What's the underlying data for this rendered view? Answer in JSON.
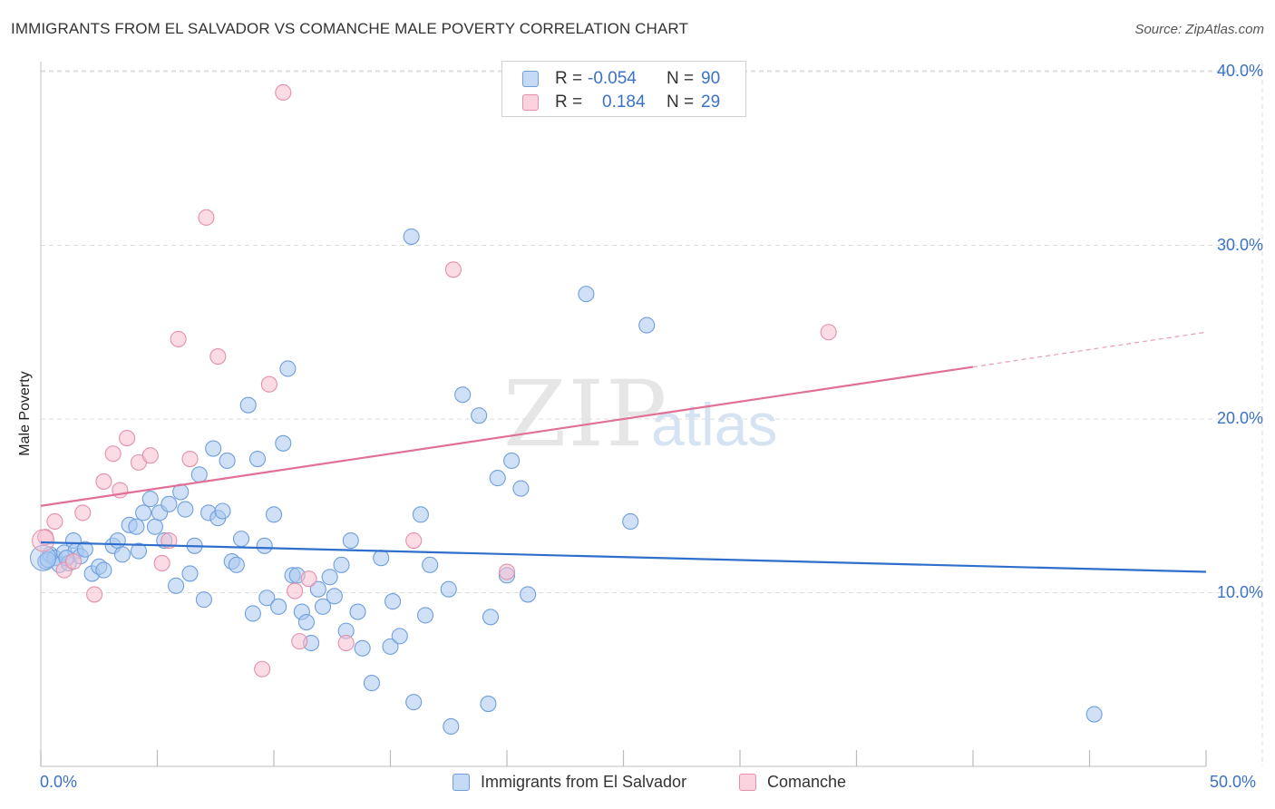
{
  "title": "IMMIGRANTS FROM EL SALVADOR VS COMANCHE MALE POVERTY CORRELATION CHART",
  "source": "Source: ZipAtlas.com",
  "watermark": {
    "zip": "ZIP",
    "atlas": "atlas"
  },
  "legend": {
    "rows": [
      {
        "r_label": "R =",
        "r_value": "-0.054",
        "n_label": "N =",
        "n_value": "90",
        "color": "#a9c8f0"
      },
      {
        "r_label": "R =",
        "r_value": "0.184",
        "n_label": "N =",
        "n_value": "29",
        "color": "#f7bfd0"
      }
    ]
  },
  "bottom_legend": {
    "series1": "Immigrants from El Salvador",
    "series2": "Comanche"
  },
  "colors": {
    "blue_fill": "#a9c8f0",
    "blue_stroke": "#6e9fdc",
    "blue_line": "#2f6fcb",
    "pink_fill": "#f7bfd0",
    "pink_stroke": "#e58fab",
    "pink_line": "#e07095",
    "grid": "#dddddd",
    "tick_text": "#3a72c8"
  },
  "chart_data": {
    "type": "scatter",
    "title": "IMMIGRANTS FROM EL SALVADOR VS COMANCHE MALE POVERTY CORRELATION CHART",
    "xlabel": "",
    "ylabel": "Male Poverty",
    "xlim": [
      0,
      50
    ],
    "ylim": [
      0,
      40
    ],
    "x_tick_labels": [
      "0.0%",
      "50.0%"
    ],
    "y_ticks": [
      10,
      20,
      30,
      40
    ],
    "y_tick_labels": [
      "10.0%",
      "20.0%",
      "30.0%",
      "40.0%"
    ],
    "grid": true,
    "series": [
      {
        "name": "Immigrants from El Salvador",
        "r": -0.054,
        "n": 90,
        "trend": {
          "x0": 0,
          "y0": 12.9,
          "x1": 50,
          "y1": 11.2
        },
        "points": [
          [
            0.2,
            11.8
          ],
          [
            0.4,
            12.2
          ],
          [
            0.6,
            12.0
          ],
          [
            0.8,
            11.6
          ],
          [
            1.0,
            12.3
          ],
          [
            1.2,
            11.7
          ],
          [
            1.4,
            13.0
          ],
          [
            1.5,
            12.4
          ],
          [
            1.7,
            12.1
          ],
          [
            1.9,
            12.5
          ],
          [
            2.2,
            11.1
          ],
          [
            2.5,
            11.5
          ],
          [
            2.7,
            11.3
          ],
          [
            3.1,
            12.7
          ],
          [
            3.3,
            13.0
          ],
          [
            3.5,
            12.2
          ],
          [
            3.8,
            13.9
          ],
          [
            4.1,
            13.8
          ],
          [
            4.2,
            12.4
          ],
          [
            4.4,
            14.6
          ],
          [
            4.7,
            15.4
          ],
          [
            4.9,
            13.8
          ],
          [
            5.1,
            14.6
          ],
          [
            5.3,
            13.0
          ],
          [
            5.5,
            15.1
          ],
          [
            5.8,
            10.4
          ],
          [
            6.0,
            15.8
          ],
          [
            6.2,
            14.8
          ],
          [
            6.4,
            11.1
          ],
          [
            6.6,
            12.7
          ],
          [
            6.8,
            16.8
          ],
          [
            7.0,
            9.6
          ],
          [
            7.2,
            14.6
          ],
          [
            7.4,
            18.3
          ],
          [
            7.6,
            14.3
          ],
          [
            7.8,
            14.7
          ],
          [
            8.0,
            17.6
          ],
          [
            8.2,
            11.8
          ],
          [
            8.4,
            11.6
          ],
          [
            8.6,
            13.1
          ],
          [
            8.9,
            20.8
          ],
          [
            9.1,
            8.8
          ],
          [
            9.3,
            17.7
          ],
          [
            9.6,
            12.7
          ],
          [
            9.7,
            9.7
          ],
          [
            10.0,
            14.5
          ],
          [
            10.2,
            9.2
          ],
          [
            10.4,
            18.6
          ],
          [
            10.6,
            22.9
          ],
          [
            10.8,
            11.0
          ],
          [
            11.0,
            11.0
          ],
          [
            11.2,
            8.9
          ],
          [
            11.4,
            8.3
          ],
          [
            11.6,
            7.1
          ],
          [
            11.9,
            10.2
          ],
          [
            12.1,
            9.2
          ],
          [
            12.4,
            10.9
          ],
          [
            12.6,
            9.8
          ],
          [
            12.9,
            11.6
          ],
          [
            13.1,
            7.8
          ],
          [
            13.3,
            13.0
          ],
          [
            13.6,
            8.9
          ],
          [
            13.8,
            6.8
          ],
          [
            14.2,
            4.8
          ],
          [
            14.6,
            12.0
          ],
          [
            15.0,
            6.9
          ],
          [
            15.1,
            9.5
          ],
          [
            15.4,
            7.5
          ],
          [
            15.9,
            30.5
          ],
          [
            16.0,
            3.7
          ],
          [
            16.3,
            14.5
          ],
          [
            16.5,
            8.7
          ],
          [
            16.7,
            11.6
          ],
          [
            17.5,
            10.2
          ],
          [
            17.6,
            2.3
          ],
          [
            18.1,
            21.4
          ],
          [
            18.8,
            20.2
          ],
          [
            19.2,
            3.6
          ],
          [
            19.3,
            8.6
          ],
          [
            19.6,
            16.6
          ],
          [
            20.0,
            11.0
          ],
          [
            20.2,
            17.6
          ],
          [
            20.6,
            16.0
          ],
          [
            20.9,
            9.9
          ],
          [
            23.4,
            27.2
          ],
          [
            25.3,
            14.1
          ],
          [
            26.0,
            25.4
          ],
          [
            45.2,
            3.0
          ],
          [
            0.3,
            11.9
          ],
          [
            1.1,
            12.0
          ]
        ]
      },
      {
        "name": "Comanche",
        "r": 0.184,
        "n": 29,
        "trend": {
          "x0": 0,
          "y0": 15.0,
          "x1": 40,
          "y1": 23.0,
          "dashed_to": {
            "x": 50,
            "y": 25.0
          }
        },
        "points": [
          [
            0.2,
            13.2
          ],
          [
            0.6,
            14.1
          ],
          [
            1.0,
            11.3
          ],
          [
            1.4,
            11.8
          ],
          [
            1.8,
            14.6
          ],
          [
            2.3,
            9.9
          ],
          [
            2.7,
            16.4
          ],
          [
            3.1,
            18.0
          ],
          [
            3.4,
            15.9
          ],
          [
            3.7,
            18.9
          ],
          [
            4.2,
            17.5
          ],
          [
            4.7,
            17.9
          ],
          [
            5.2,
            11.7
          ],
          [
            5.5,
            13.0
          ],
          [
            5.9,
            24.6
          ],
          [
            6.4,
            17.7
          ],
          [
            7.1,
            31.6
          ],
          [
            7.6,
            23.6
          ],
          [
            9.5,
            5.6
          ],
          [
            9.8,
            22.0
          ],
          [
            10.4,
            38.8
          ],
          [
            10.9,
            10.1
          ],
          [
            11.1,
            7.2
          ],
          [
            11.5,
            10.8
          ],
          [
            13.1,
            7.1
          ],
          [
            16.0,
            13.0
          ],
          [
            17.7,
            28.6
          ],
          [
            20.0,
            11.2
          ],
          [
            33.8,
            25.0
          ]
        ]
      }
    ]
  }
}
